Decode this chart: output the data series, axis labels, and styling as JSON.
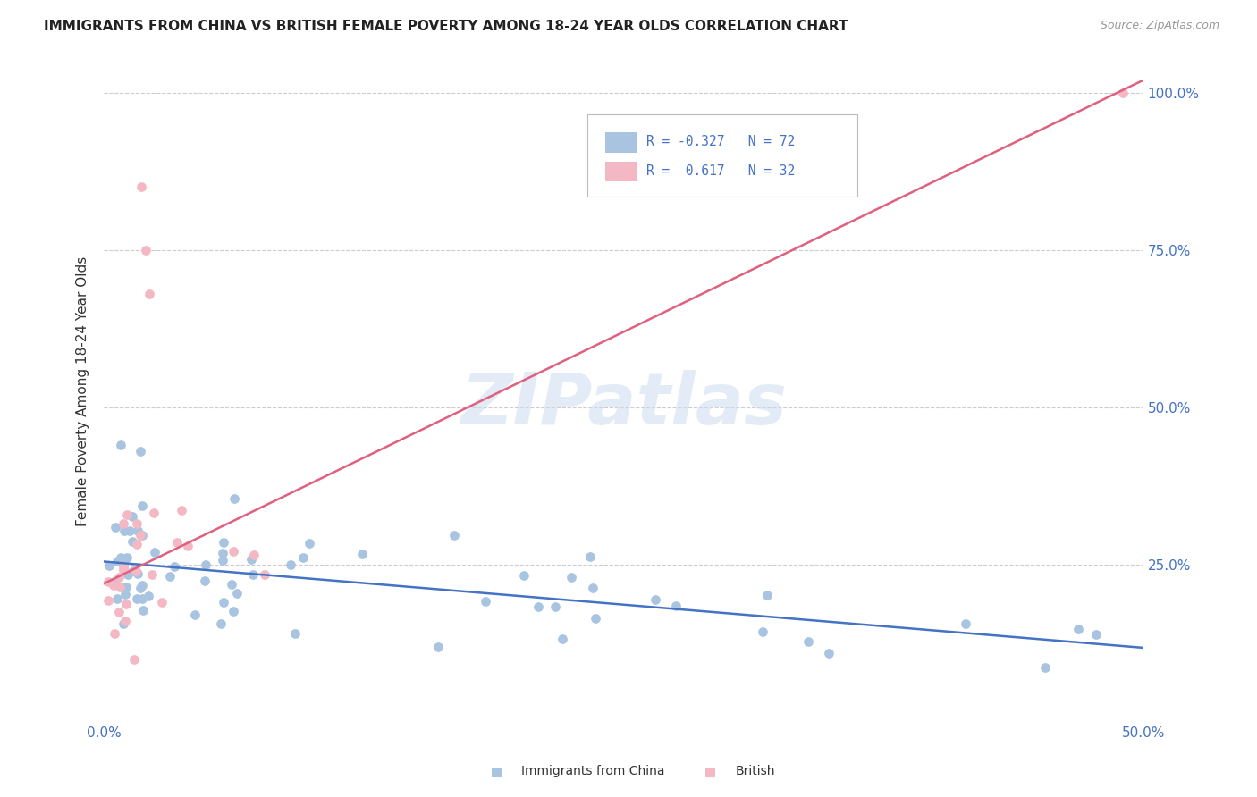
{
  "title": "IMMIGRANTS FROM CHINA VS BRITISH FEMALE POVERTY AMONG 18-24 YEAR OLDS CORRELATION CHART",
  "source": "Source: ZipAtlas.com",
  "ylabel": "Female Poverty Among 18-24 Year Olds",
  "xlim": [
    0.0,
    0.5
  ],
  "ylim": [
    0.0,
    1.05
  ],
  "color_blue": "#a8c4e0",
  "color_pink": "#f4b8c4",
  "line_color_blue": "#4472c4",
  "line_color_pink": "#e06080",
  "tick_color": "#4472c4",
  "grid_color": "#cccccc",
  "blue_line_x": [
    0.0,
    0.5
  ],
  "blue_line_y": [
    0.255,
    0.118
  ],
  "pink_line_x": [
    0.0,
    0.5
  ],
  "pink_line_y": [
    0.22,
    1.02
  ],
  "ytick_positions": [
    0.25,
    0.5,
    0.75,
    1.0
  ],
  "ytick_labels": [
    "25.0%",
    "50.0%",
    "75.0%",
    "100.0%"
  ],
  "xtick_positions": [
    0.0,
    0.1,
    0.2,
    0.3,
    0.4,
    0.5
  ],
  "xtick_labels": [
    "0.0%",
    "",
    "",
    "",
    "",
    "50.0%"
  ]
}
